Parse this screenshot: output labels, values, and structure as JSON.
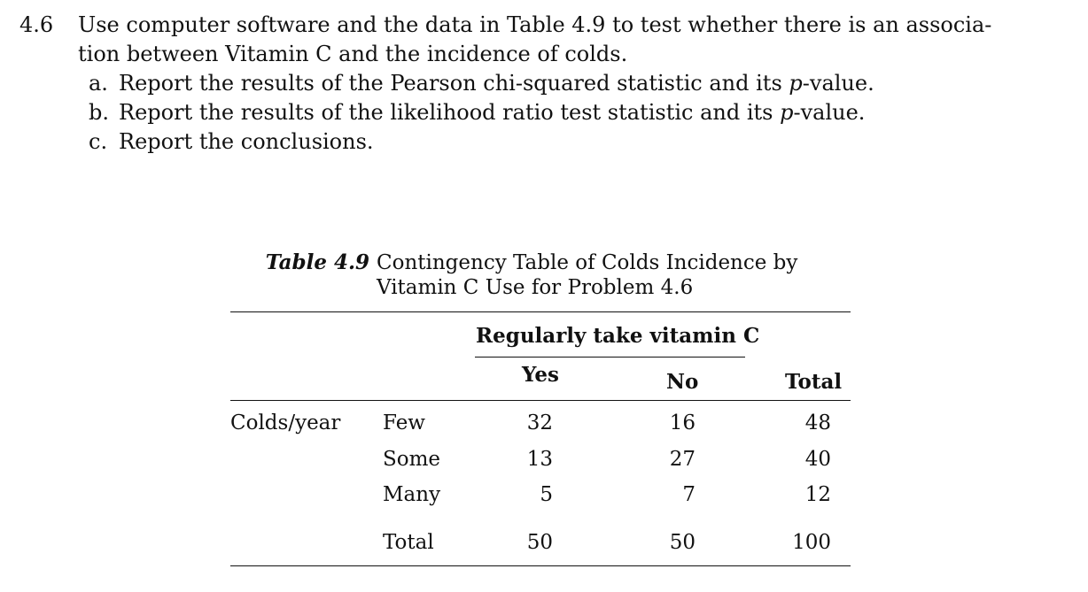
{
  "problem": {
    "number": "4.6",
    "text_line1": "Use computer software and the data in Table 4.9 to test whether there is an associa-",
    "text_line2": "tion between Vitamin C and the incidence of colds.",
    "parts": [
      {
        "letter": "a.",
        "text_before": "Report the results of the Pearson chi-squared statistic and its ",
        "italic": "p",
        "text_after": "-value."
      },
      {
        "letter": "b.",
        "text_before": "Report the results of the likelihood ratio test statistic and its ",
        "italic": "p",
        "text_after": "-value."
      },
      {
        "letter": "c.",
        "text_before": "Report the conclusions.",
        "italic": "",
        "text_after": ""
      }
    ]
  },
  "table": {
    "label": "Table 4.9",
    "caption_line1": "Contingency Table of Colds Incidence by",
    "caption_line2": "Vitamin C Use for Problem 4.6",
    "group_header": "Regularly take vitamin C",
    "col_yes": "Yes",
    "col_no": "No",
    "col_total": "Total",
    "row_group": "Colds/year",
    "rows": [
      {
        "label": "Few",
        "yes": "32",
        "no": "16",
        "total": "48"
      },
      {
        "label": "Some",
        "yes": "13",
        "no": "27",
        "total": "40"
      },
      {
        "label": "Many",
        "yes": "5",
        "no": "7",
        "total": "12"
      }
    ],
    "total_row": {
      "label": "Total",
      "yes": "50",
      "no": "50",
      "total": "100"
    }
  }
}
